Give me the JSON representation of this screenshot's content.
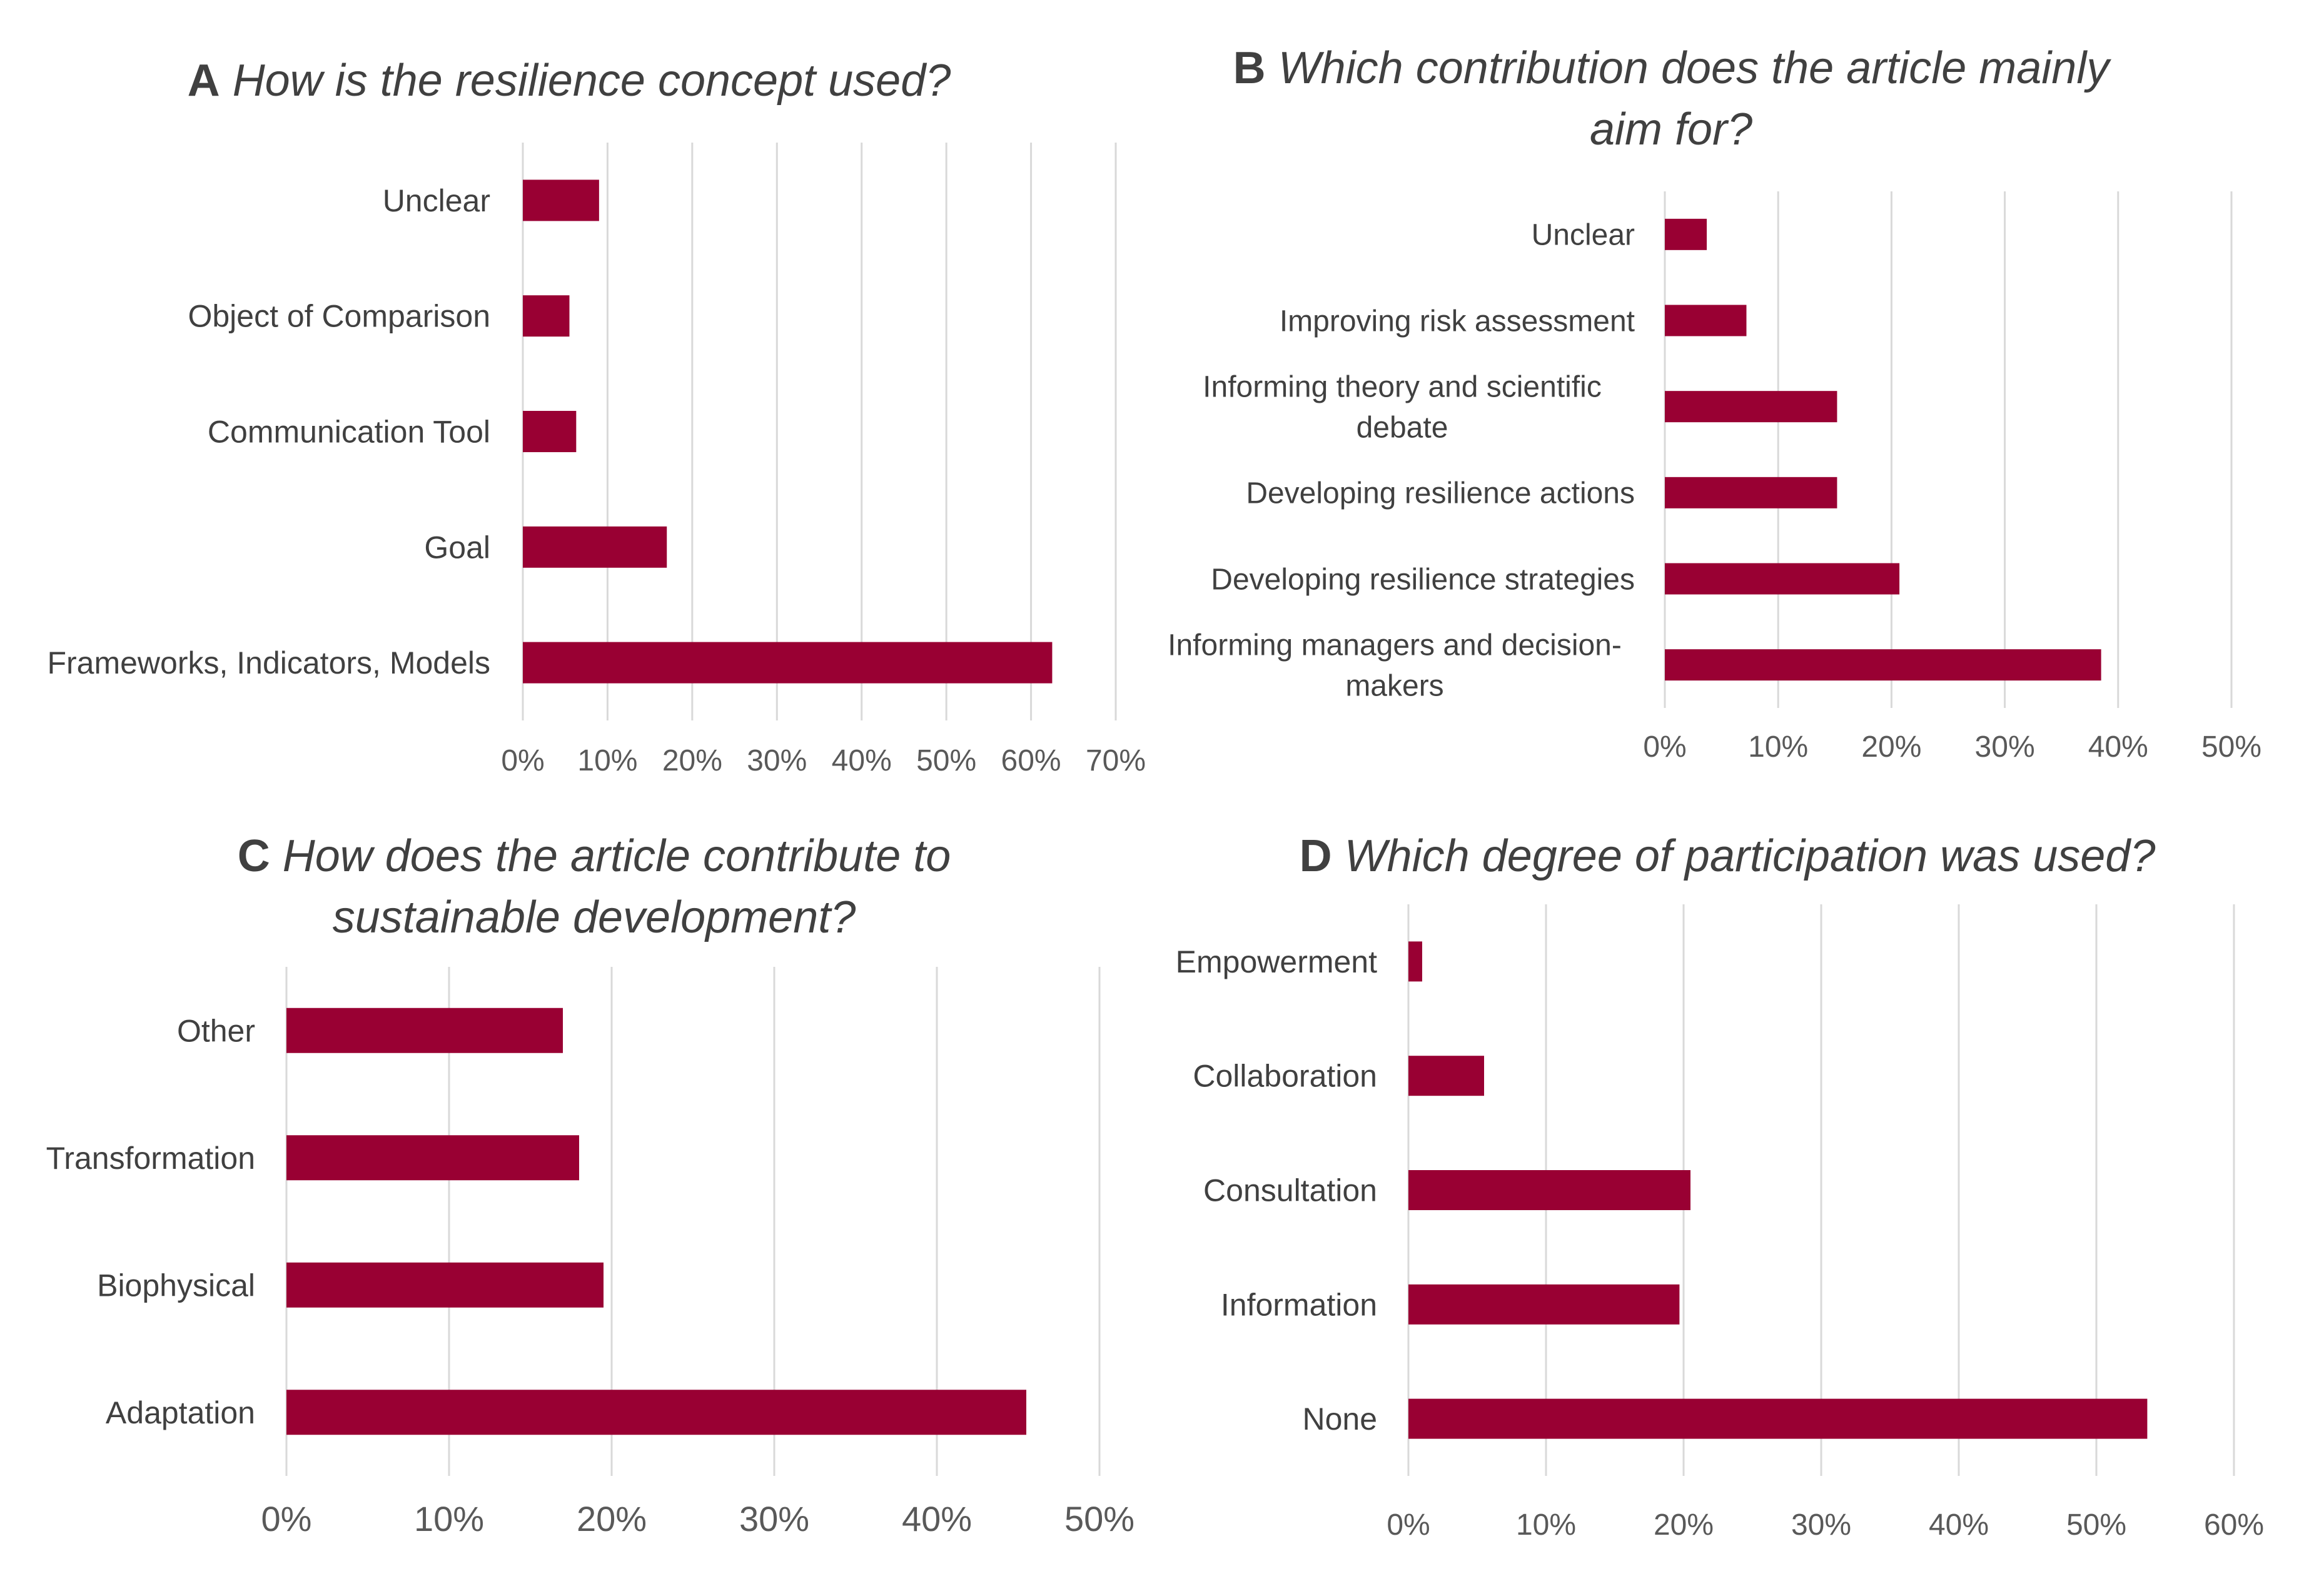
{
  "bar_color": "#990033",
  "grid_color": "#d9d9d9",
  "chart_data": [
    {
      "id": "A",
      "type": "bar",
      "orientation": "horizontal",
      "title_letter": "A",
      "title_lines": [
        "How is the resilience concept used?"
      ],
      "categories": [
        "Unclear",
        "Object of Comparison",
        "Communication Tool",
        "Goal",
        "Frameworks, Indicators, Models"
      ],
      "values": [
        9,
        5.5,
        6.3,
        17,
        62.5
      ],
      "xlim": [
        0,
        70
      ],
      "ticks": [
        "0%",
        "10%",
        "20%",
        "30%",
        "40%",
        "50%",
        "60%",
        "70%"
      ],
      "grid": true,
      "legend": "none"
    },
    {
      "id": "B",
      "type": "bar",
      "orientation": "horizontal",
      "title_letter": "B",
      "title_lines": [
        "Which contribution does the article mainly",
        "aim for?"
      ],
      "categories": [
        "Unclear",
        "Improving risk assessment",
        "Informing theory and scientific debate",
        "Developing resilience actions",
        "Developing resilience strategies",
        "Informing managers and decision-makers"
      ],
      "category_lines": [
        [
          "Unclear"
        ],
        [
          "Improving risk assessment"
        ],
        [
          "Informing theory and scientific",
          "debate"
        ],
        [
          "Developing resilience actions"
        ],
        [
          "Developing resilience strategies"
        ],
        [
          "Informing managers and decision-",
          "makers"
        ]
      ],
      "values": [
        3.7,
        7.2,
        15.2,
        15.2,
        20.7,
        38.5
      ],
      "xlim": [
        0,
        50
      ],
      "ticks": [
        "0%",
        "10%",
        "20%",
        "30%",
        "40%",
        "50%"
      ],
      "grid": true,
      "legend": "none"
    },
    {
      "id": "C",
      "type": "bar",
      "orientation": "horizontal",
      "title_letter": "C",
      "title_lines": [
        "How does the article contribute to",
        "sustainable development?"
      ],
      "categories": [
        "Other",
        "Transformation",
        "Biophysical",
        "Adaptation"
      ],
      "values": [
        17,
        18,
        19.5,
        45.5
      ],
      "xlim": [
        0,
        50
      ],
      "ticks": [
        "0%",
        "10%",
        "20%",
        "30%",
        "40%",
        "50%"
      ],
      "grid": true,
      "legend": "none"
    },
    {
      "id": "D",
      "type": "bar",
      "orientation": "horizontal",
      "title_letter": "D",
      "title_lines": [
        "Which degree of participation was used?"
      ],
      "categories": [
        "Empowerment",
        "Collaboration",
        "Consultation",
        "Information",
        "None"
      ],
      "values": [
        1,
        5.5,
        20.5,
        19.7,
        53.7
      ],
      "xlim": [
        0,
        60
      ],
      "ticks": [
        "0%",
        "10%",
        "20%",
        "30%",
        "40%",
        "50%",
        "60%"
      ],
      "grid": true,
      "legend": "none"
    }
  ]
}
